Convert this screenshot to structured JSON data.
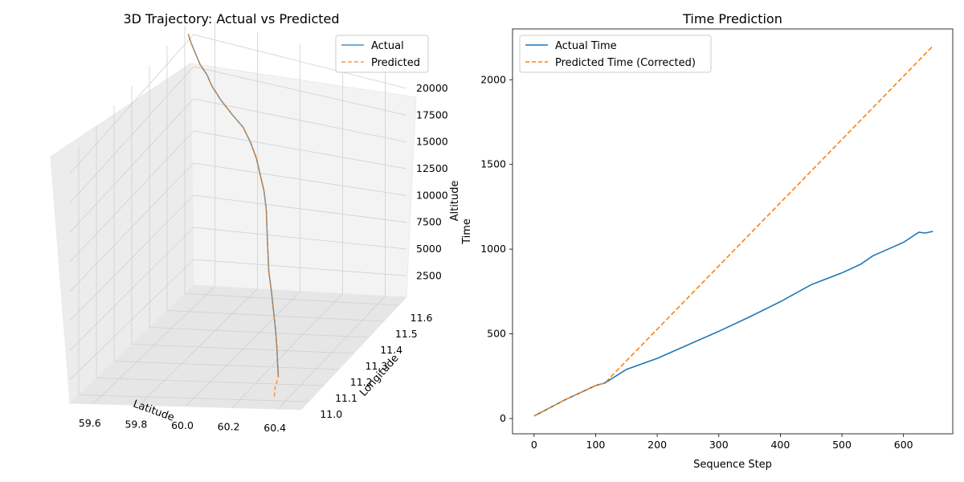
{
  "chart_data": [
    {
      "type": "line",
      "projection": "3d",
      "title": "3D Trajectory: Actual vs Predicted",
      "xlabel": "Latitude",
      "ylabel": "Longitude",
      "zlabel": "Altitude",
      "legend": "top-right",
      "grid": true,
      "xlim": [
        59.5,
        60.5
      ],
      "ylim": [
        10.95,
        11.65
      ],
      "zlim": [
        500,
        21500
      ],
      "x_ticks": [
        "59.6",
        "59.8",
        "60.0",
        "60.2",
        "60.4"
      ],
      "y_ticks": [
        "11.0",
        "11.1",
        "11.2",
        "11.3",
        "11.4",
        "11.5",
        "11.6"
      ],
      "z_ticks": [
        "2500",
        "5000",
        "7500",
        "10000",
        "12500",
        "15000",
        "17500",
        "20000"
      ],
      "series": [
        {
          "name": "Actual",
          "color": "#1f77b4",
          "style": "solid",
          "lat": [
            59.5,
            59.52,
            59.55,
            59.58,
            59.62,
            59.65,
            59.7,
            59.76,
            59.82,
            59.87,
            59.92,
            59.96,
            60.0,
            60.04,
            60.08,
            60.12,
            60.16,
            60.2,
            60.23,
            60.26,
            60.28,
            60.29,
            60.3
          ],
          "lon": [
            11.62,
            11.61,
            11.6,
            11.59,
            11.58,
            11.57,
            11.56,
            11.55,
            11.54,
            11.52,
            11.49,
            11.46,
            11.43,
            11.39,
            11.34,
            11.29,
            11.24,
            11.2,
            11.17,
            11.14,
            11.12,
            11.11,
            11.1
          ],
          "alt": [
            20500,
            20100,
            19500,
            18900,
            18400,
            17800,
            17000,
            16200,
            15500,
            14700,
            14000,
            13200,
            12400,
            11500,
            10600,
            9700,
            8700,
            7600,
            6400,
            5100,
            3700,
            2300,
            1200
          ]
        },
        {
          "name": "Predicted",
          "color": "#ff7f0e",
          "style": "dashed",
          "lat": [
            59.5,
            59.52,
            59.55,
            59.58,
            59.62,
            59.65,
            59.7,
            59.76,
            59.82,
            59.87,
            59.92,
            59.96,
            60.0,
            60.04,
            60.08,
            60.12,
            60.16,
            60.2,
            60.23,
            60.26,
            60.28,
            60.29,
            60.3,
            60.32,
            60.35
          ],
          "lon": [
            11.62,
            11.61,
            11.6,
            11.59,
            11.58,
            11.57,
            11.56,
            11.55,
            11.54,
            11.52,
            11.49,
            11.46,
            11.43,
            11.39,
            11.34,
            11.29,
            11.24,
            11.2,
            11.17,
            11.14,
            11.12,
            11.11,
            11.1,
            11.05,
            11.0
          ],
          "alt": [
            20500,
            20100,
            19500,
            18900,
            18400,
            17800,
            17000,
            16200,
            15500,
            14700,
            14000,
            13200,
            12400,
            11500,
            10600,
            9700,
            8700,
            7600,
            6400,
            5100,
            3700,
            2300,
            1200,
            1000,
            900
          ]
        }
      ]
    },
    {
      "type": "line",
      "title": "Time Prediction",
      "xlabel": "Sequence Step",
      "ylabel": "Time",
      "legend": "top-left",
      "grid": false,
      "xlim": [
        -35,
        680
      ],
      "ylim": [
        -90,
        2300
      ],
      "x_ticks": [
        0,
        100,
        200,
        300,
        400,
        500,
        600
      ],
      "y_ticks": [
        0,
        500,
        1000,
        1500,
        2000
      ],
      "series": [
        {
          "name": "Actual Time",
          "color": "#1f77b4",
          "style": "solid",
          "x": [
            0,
            50,
            100,
            115,
            150,
            200,
            250,
            300,
            350,
            400,
            450,
            500,
            530,
            550,
            600,
            625,
            635,
            648
          ],
          "y": [
            15,
            110,
            195,
            210,
            290,
            355,
            435,
            515,
            600,
            690,
            790,
            860,
            910,
            960,
            1040,
            1100,
            1095,
            1105
          ]
        },
        {
          "name": "Predicted Time (Corrected)",
          "color": "#ff7f0e",
          "style": "dashed",
          "x": [
            0,
            50,
            100,
            115,
            648
          ],
          "y": [
            15,
            110,
            195,
            210,
            2200
          ]
        }
      ]
    }
  ]
}
